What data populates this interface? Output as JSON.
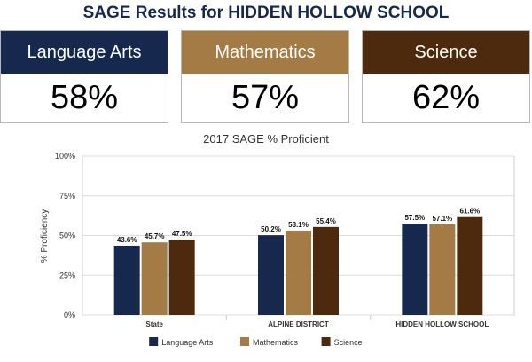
{
  "header": {
    "title": "SAGE Results for HIDDEN HOLLOW SCHOOL"
  },
  "cards": [
    {
      "label": "Language Arts",
      "value": "58%",
      "color": "#17284f"
    },
    {
      "label": "Mathematics",
      "value": "57%",
      "color": "#a47a45"
    },
    {
      "label": "Science",
      "value": "62%",
      "color": "#4d2a0e"
    }
  ],
  "chart_data": {
    "type": "bar",
    "title": "2017 SAGE % Proficient",
    "ylabel": "% Proficiency",
    "xlabel": "",
    "ylim": [
      0,
      100
    ],
    "yticks": [
      "0%",
      "25%",
      "50%",
      "75%",
      "100%"
    ],
    "categories": [
      "State",
      "ALPINE DISTRICT",
      "HIDDEN HOLLOW SCHOOL"
    ],
    "series": [
      {
        "name": "Language Arts",
        "color": "#17284f",
        "values": [
          43.6,
          50.2,
          57.5
        ],
        "labels": [
          "43.6%",
          "50.2%",
          "57.5%"
        ]
      },
      {
        "name": "Mathematics",
        "color": "#a47a45",
        "values": [
          45.7,
          53.1,
          57.1
        ],
        "labels": [
          "45.7%",
          "53.1%",
          "57.1%"
        ]
      },
      {
        "name": "Science",
        "color": "#4d2a0e",
        "values": [
          47.5,
          55.4,
          61.6
        ],
        "labels": [
          "47.5%",
          "55.4%",
          "61.6%"
        ]
      }
    ],
    "grid": true,
    "legend": "bottom"
  }
}
